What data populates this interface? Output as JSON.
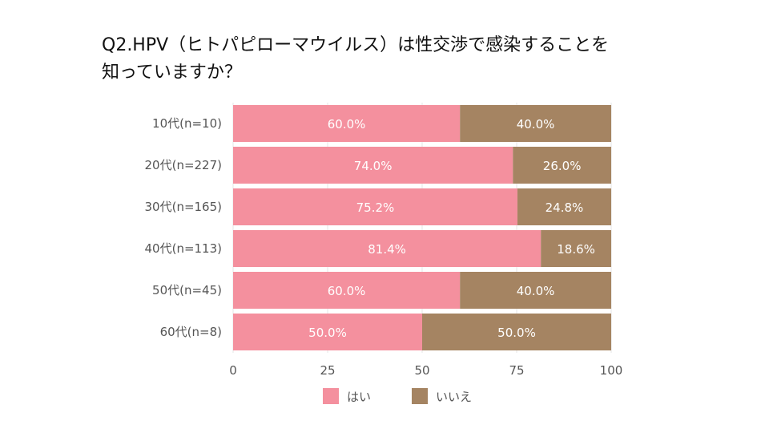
{
  "title": "Q2.HPV（ヒトパピローマウイルス）は性交渉で感染することを\n知っていますか？",
  "chart_data": {
    "type": "bar",
    "orientation": "horizontal",
    "stacked": true,
    "categories": [
      "10代(n=10)",
      "20代(n=227)",
      "30代(n=165)",
      "40代(n=113)",
      "50代(n=45)",
      "60代(n=8)"
    ],
    "series": [
      {
        "name": "はい",
        "color": "#f4909e",
        "values": [
          60.0,
          74.0,
          75.2,
          81.4,
          60.0,
          50.0
        ],
        "labels": [
          "60.0%",
          "74.0%",
          "75.2%",
          "81.4%",
          "60.0%",
          "50.0%"
        ]
      },
      {
        "name": "いいえ",
        "color": "#a58462",
        "values": [
          40.0,
          26.0,
          24.8,
          18.6,
          40.0,
          50.0
        ],
        "labels": [
          "40.0%",
          "26.0%",
          "24.8%",
          "18.6%",
          "40.0%",
          "50.0%"
        ]
      }
    ],
    "xlim": [
      0,
      100
    ],
    "xticks": [
      0,
      25,
      50,
      75,
      100
    ],
    "grid": true,
    "legend_position": "bottom"
  }
}
